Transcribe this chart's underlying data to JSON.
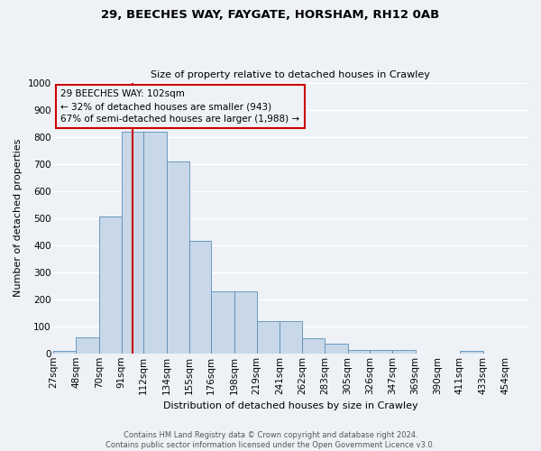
{
  "title": "29, BEECHES WAY, FAYGATE, HORSHAM, RH12 0AB",
  "subtitle": "Size of property relative to detached houses in Crawley",
  "xlabel": "Distribution of detached houses by size in Crawley",
  "ylabel": "Number of detached properties",
  "categories": [
    "27sqm",
    "48sqm",
    "70sqm",
    "91sqm",
    "112sqm",
    "134sqm",
    "155sqm",
    "176sqm",
    "198sqm",
    "219sqm",
    "241sqm",
    "262sqm",
    "283sqm",
    "305sqm",
    "326sqm",
    "347sqm",
    "369sqm",
    "390sqm",
    "411sqm",
    "433sqm",
    "454sqm"
  ],
  "values": [
    8,
    60,
    505,
    820,
    820,
    710,
    415,
    230,
    230,
    118,
    118,
    57,
    35,
    12,
    12,
    12,
    0,
    0,
    8,
    0,
    0
  ],
  "bar_color": "#c8d8e8",
  "bar_edge_color": "#5b8db8",
  "vline_x": 102,
  "vline_color": "#cc0000",
  "annotation_box_color": "#cc0000",
  "annotation_line1": "29 BEECHES WAY: 102sqm",
  "annotation_line2": "← 32% of detached houses are smaller (943)",
  "annotation_line3": "67% of semi-detached houses are larger (1,988) →",
  "ylim": [
    0,
    1000
  ],
  "yticks": [
    0,
    100,
    200,
    300,
    400,
    500,
    600,
    700,
    800,
    900,
    1000
  ],
  "background_color": "#eef2f7",
  "grid_color": "#ffffff",
  "footer_line1": "Contains HM Land Registry data © Crown copyright and database right 2024.",
  "footer_line2": "Contains public sector information licensed under the Open Government Licence v3.0.",
  "title_fontsize": 9.5,
  "subtitle_fontsize": 8.0,
  "ylabel_fontsize": 8.0,
  "xlabel_fontsize": 8.0,
  "tick_fontsize": 7.5,
  "footer_fontsize": 6.0,
  "ann_fontsize": 7.5
}
